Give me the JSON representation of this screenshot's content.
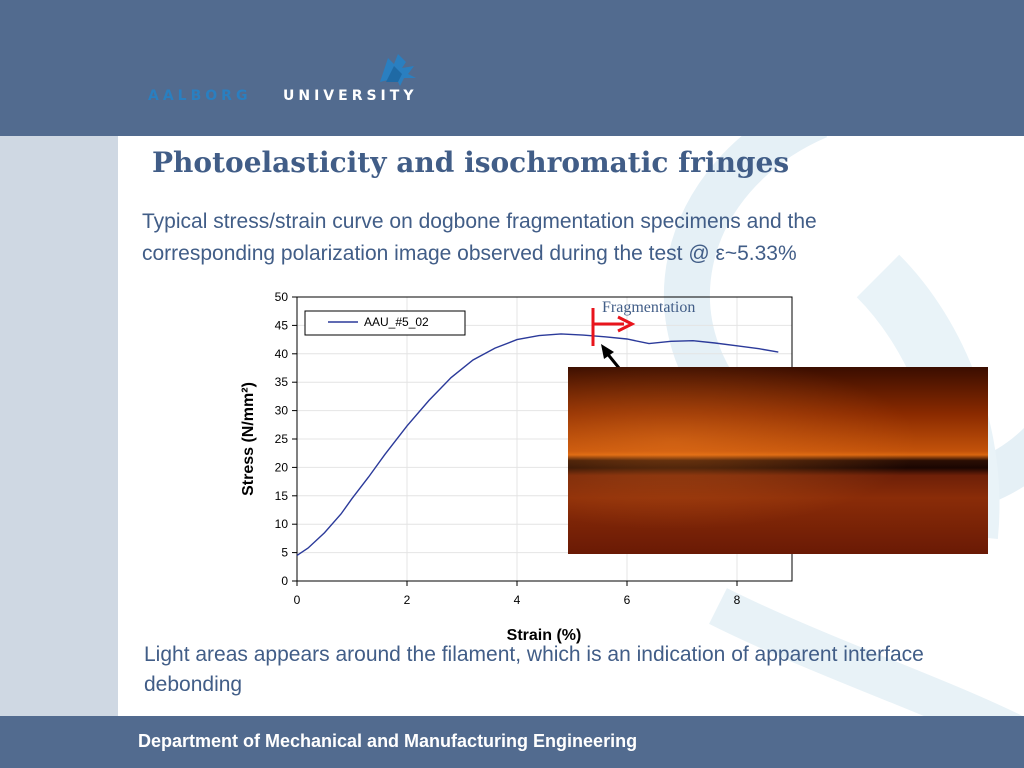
{
  "header": {
    "logo_word1": "AALBORG",
    "logo_word2": "UNIVERSITY",
    "logo_icon": "aau-logo-icon"
  },
  "slide": {
    "title": "Photoelasticity and isochromatic fringes",
    "intro": "Typical stress/strain curve on dogbone fragmentation specimens and the corresponding polarization image observed during the test @ ε~5.33%",
    "bottom_text": "Light areas appears around the filament, which is an indication of apparent interface debonding"
  },
  "footer": {
    "text": "Department of Mechanical and Manufacturing Engineering"
  },
  "colors": {
    "header_bg": "#526b8f",
    "title": "#415d87",
    "series_line": "#2b3a9a",
    "marker": "#e8141c"
  },
  "chart_data": {
    "type": "line",
    "xlabel": "Strain (%)",
    "ylabel": "Stress (N/mm²)",
    "xlim": [
      0,
      9
    ],
    "ylim": [
      0,
      50
    ],
    "x_ticks": [
      0,
      2,
      4,
      6,
      8
    ],
    "y_ticks": [
      0,
      5,
      10,
      15,
      20,
      25,
      30,
      35,
      40,
      45,
      50
    ],
    "grid": true,
    "legend_position": "top-left",
    "series": [
      {
        "name": "AAU_#5_02",
        "x": [
          0,
          0.2,
          0.5,
          0.8,
          1.0,
          1.3,
          1.6,
          2.0,
          2.4,
          2.8,
          3.2,
          3.6,
          4.0,
          4.4,
          4.8,
          5.2,
          5.6,
          6.0,
          6.4,
          6.8,
          7.2,
          7.6,
          8.0,
          8.4,
          8.75
        ],
        "y": [
          4.5,
          5.8,
          8.5,
          11.8,
          14.5,
          18.3,
          22.3,
          27.3,
          31.8,
          35.8,
          38.9,
          41.0,
          42.5,
          43.2,
          43.5,
          43.3,
          43.0,
          42.6,
          41.8,
          42.2,
          42.3,
          41.9,
          41.4,
          40.9,
          40.3
        ]
      }
    ],
    "annotations": [
      {
        "text": "Fragmentation",
        "x": 5.4
      }
    ]
  }
}
